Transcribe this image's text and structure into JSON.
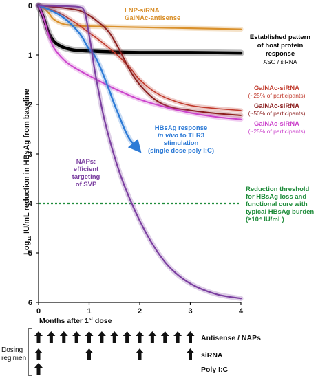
{
  "chart_data": {
    "type": "line",
    "xlabel": "Months after 1st dose",
    "xlabel_main": "Months after 1",
    "xlabel_sup": "st",
    "xlabel_tail": " dose",
    "ylabel_prefix": "Log",
    "ylabel_sub": "10",
    "ylabel_rest": " IU/mL  reduction in HBsAg from baseline",
    "xlim": [
      0,
      4
    ],
    "ylim": [
      0,
      6
    ],
    "y_inverted": true,
    "x_ticks": [
      "0",
      "1",
      "2",
      "3",
      "4"
    ],
    "y_ticks": [
      "0",
      "1",
      "2",
      "3",
      "4",
      "5",
      "6"
    ],
    "series": [
      {
        "id": "lnp",
        "color": "#d9902b",
        "width": 2.2,
        "x": [
          0,
          0.1,
          0.2,
          0.3,
          0.5,
          0.8,
          1.0,
          1.5,
          2,
          3,
          4
        ],
        "y": [
          0.0,
          0.05,
          0.15,
          0.28,
          0.38,
          0.41,
          0.42,
          0.43,
          0.44,
          0.46,
          0.48
        ]
      },
      {
        "id": "established",
        "color": "#000000",
        "width": 4.5,
        "x": [
          0,
          0.1,
          0.2,
          0.3,
          0.4,
          0.5,
          0.7,
          1.0,
          1.5,
          2,
          3,
          4
        ],
        "y": [
          0.0,
          0.25,
          0.55,
          0.72,
          0.8,
          0.85,
          0.9,
          0.92,
          0.94,
          0.95,
          0.95,
          0.96
        ]
      },
      {
        "id": "galnac25a",
        "color": "#c0392b",
        "width": 1.6,
        "x": [
          0,
          0.1,
          0.3,
          0.5,
          0.8,
          1.0,
          1.2,
          1.5,
          1.8,
          2.0,
          2.3,
          2.6,
          3.0,
          3.5,
          4.0
        ],
        "y": [
          0.0,
          0.04,
          0.1,
          0.2,
          0.4,
          0.55,
          0.7,
          0.95,
          1.25,
          1.5,
          1.75,
          1.9,
          2.02,
          2.08,
          2.12
        ]
      },
      {
        "id": "galnac50",
        "color": "#8b1e1e",
        "width": 2.0,
        "x": [
          0,
          0.2,
          0.5,
          0.8,
          1.0,
          1.2,
          1.4,
          1.6,
          1.8,
          2.0,
          2.3,
          2.6,
          3.0,
          3.5,
          4.0
        ],
        "y": [
          0.0,
          0.02,
          0.05,
          0.1,
          0.2,
          0.35,
          0.55,
          0.9,
          1.3,
          1.6,
          1.9,
          2.05,
          2.12,
          2.18,
          2.22
        ]
      },
      {
        "id": "galnac25b",
        "color": "#cc44cc",
        "width": 2.0,
        "x": [
          0,
          0.1,
          0.2,
          0.3,
          0.5,
          0.7,
          1.0,
          1.5,
          2.0,
          2.5,
          3.0,
          3.5,
          4.0
        ],
        "y": [
          0.0,
          0.25,
          0.6,
          0.85,
          1.1,
          1.25,
          1.42,
          1.68,
          1.9,
          2.05,
          2.17,
          2.25,
          2.3
        ]
      },
      {
        "id": "tlr3",
        "color": "#2e7bd6",
        "width": 2.4,
        "x": [
          0,
          0.2,
          0.5,
          0.8,
          0.95,
          1.0,
          1.1,
          1.2,
          1.3,
          1.4,
          1.5,
          1.6,
          1.7,
          1.8,
          1.95
        ],
        "y": [
          0.0,
          0.08,
          0.25,
          0.55,
          0.8,
          0.88,
          1.0,
          1.2,
          1.45,
          1.72,
          2.0,
          2.25,
          2.5,
          2.7,
          2.88
        ],
        "arrow": true
      },
      {
        "id": "nap",
        "color": "#7b3fa0",
        "width": 2.2,
        "x": [
          0,
          0.4,
          0.8,
          0.9,
          0.95,
          1.0,
          1.05,
          1.1,
          1.2,
          1.3,
          1.5,
          1.7,
          2.0,
          2.3,
          2.6,
          3.0,
          3.5,
          4.0
        ],
        "y": [
          0.0,
          0.01,
          0.03,
          0.1,
          0.3,
          0.6,
          0.9,
          1.25,
          1.8,
          2.3,
          3.05,
          3.65,
          4.35,
          4.9,
          5.3,
          5.62,
          5.83,
          5.92
        ]
      }
    ],
    "threshold": {
      "y": 4.0,
      "color": "#1e8c3a"
    },
    "annotations": {
      "lnp_1": "LNP-siRNA",
      "lnp_2": "GalNAc-antisense",
      "est_1": "Established pattern",
      "est_2": "of host protein",
      "est_3": "response",
      "est_4": "ASO / siRNA",
      "g25a_1": "GalNAc-siRNA",
      "g25a_2": "(~25% of participants)",
      "g50_1": "GalNAc-siRNA",
      "g50_2": "(~50% of participants)",
      "g25b_1": "GalNAc-siRNA",
      "g25b_2": "(~25% of participants)",
      "tlr3_1": "HBsAg response",
      "tlr3_2a": "in vivo",
      "tlr3_2b": " to TLR3",
      "tlr3_3": "stimulation",
      "tlr3_4": "(single dose poly I:C)",
      "nap_1": "NAPs:",
      "nap_2": "efficient",
      "nap_3": "targeting",
      "nap_4": "of SVP",
      "thr_1": "Reduction threshold",
      "thr_2": "for HBsAg loss and",
      "thr_3": "functional cure with",
      "thr_4": "typical HBsAg burden",
      "thr_5": "(≥10⁴ IU/mL)"
    },
    "colors": {
      "lnp": "#d9902b",
      "established": "#000000",
      "galnac25a": "#c0392b",
      "galnac50": "#8b1e1e",
      "galnac25b": "#cc44cc",
      "tlr3": "#2e7bd6",
      "nap": "#7b3fa0",
      "threshold": "#1e8c3a"
    }
  },
  "dosing": {
    "title_1": "Dosing",
    "title_2": "regimen",
    "rows": [
      {
        "label": "Antisense / NAPs",
        "months": [
          0,
          0.25,
          0.5,
          0.75,
          1.0,
          1.25,
          1.5,
          1.75,
          2.0,
          2.25,
          2.5,
          2.75,
          3.0
        ]
      },
      {
        "label": "siRNA",
        "months": [
          0,
          1.0,
          2.0,
          3.0
        ]
      },
      {
        "label": "Poly I:C",
        "months": [
          0
        ]
      }
    ]
  }
}
